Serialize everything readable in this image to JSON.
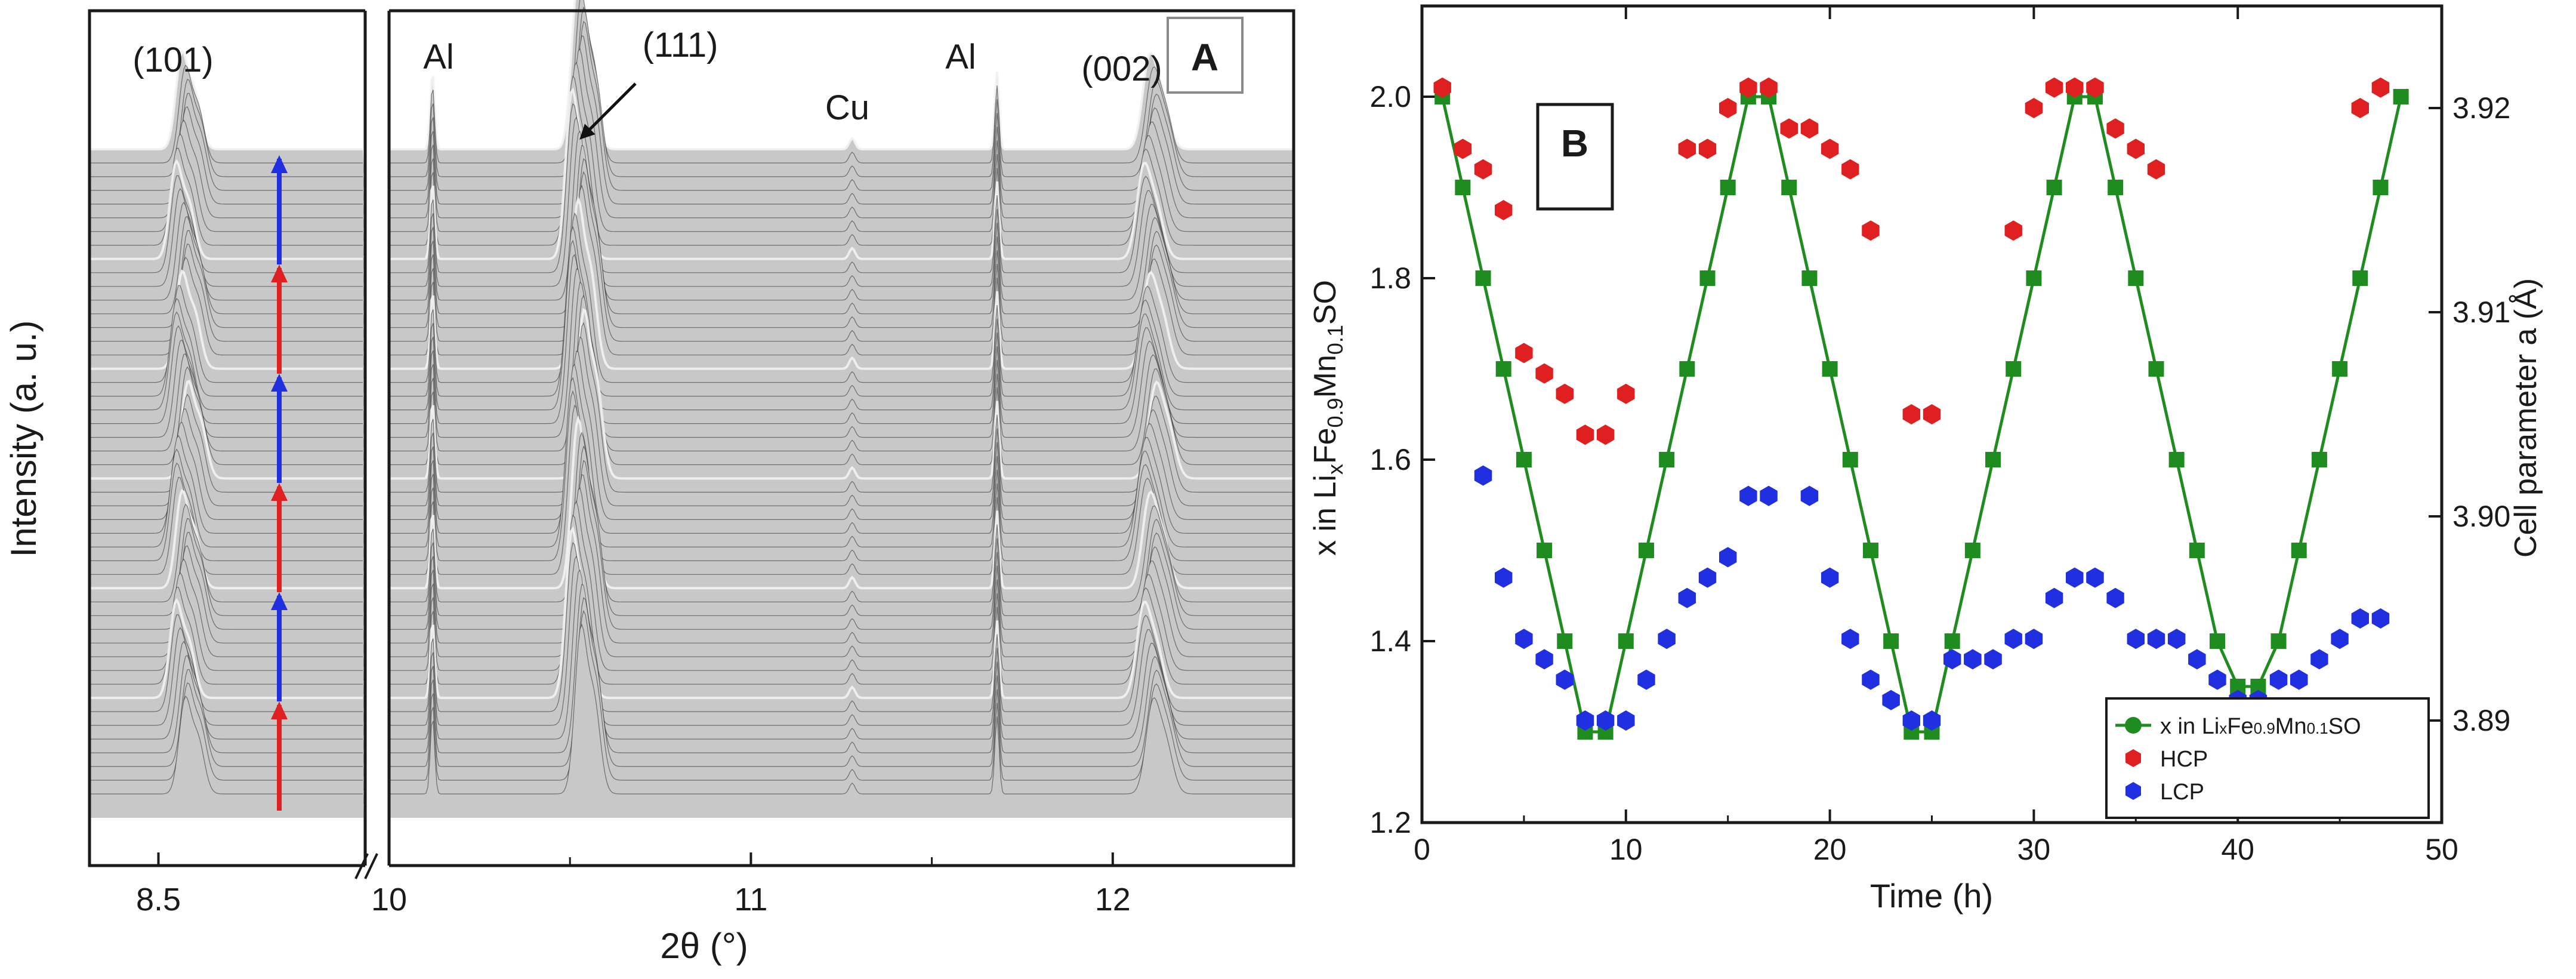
{
  "chart_data": [
    {
      "panel": "A",
      "type": "line",
      "title": "",
      "xlabel": "2θ (°)",
      "ylabel": "Intensity (a. u.)",
      "xlim": [
        8.35,
        12.5
      ],
      "x_break": [
        8.95,
        10.0
      ],
      "xticks": [
        "8.5",
        "10",
        "11",
        "12"
      ],
      "xtick_values": [
        8.5,
        10,
        11,
        12
      ],
      "peaks": [
        {
          "label": "(101)",
          "position": 8.55
        },
        {
          "label": "Al",
          "position": 10.12
        },
        {
          "label": "(111)",
          "position": 10.52
        },
        {
          "label": "Cu",
          "position": 11.28
        },
        {
          "label": "Al",
          "position": 11.68
        },
        {
          "label": "(002)",
          "position": 12.1
        }
      ],
      "scan_count": 48,
      "arrow_segments": [
        {
          "direction": "charge",
          "color": "#e02020"
        },
        {
          "direction": "discharge",
          "color": "#2030e0"
        },
        {
          "direction": "charge",
          "color": "#e02020"
        },
        {
          "direction": "discharge",
          "color": "#2030e0"
        },
        {
          "direction": "charge",
          "color": "#e02020"
        },
        {
          "direction": "discharge",
          "color": "#2030e0"
        }
      ]
    },
    {
      "panel": "B",
      "type": "scatter",
      "title": "",
      "xlabel": "Time (h)",
      "ylabel_left": "x in Li",
      "ylabel_left_sub": "x",
      "ylabel_left_mid": "Fe",
      "ylabel_left_sub2": "0.9",
      "ylabel_left_mid2": "Mn",
      "ylabel_left_sub3": "0.1",
      "ylabel_left_end": "SO",
      "ylabel_right": "Cell parameter a (Å)",
      "xlim": [
        0,
        50
      ],
      "ylim_left": [
        1.2,
        2.1
      ],
      "ylim_right": [
        3.885,
        3.925
      ],
      "xticks": [
        "0",
        "10",
        "20",
        "30",
        "40",
        "50"
      ],
      "xtick_values": [
        0,
        10,
        20,
        30,
        40,
        50
      ],
      "yticks_left": [
        "1.2",
        "1.4",
        "1.6",
        "1.8",
        "2.0"
      ],
      "ytick_left_values": [
        1.2,
        1.4,
        1.6,
        1.8,
        2.0
      ],
      "yticks_right": [
        "3.89",
        "3.90",
        "3.91",
        "3.92"
      ],
      "ytick_right_values": [
        3.89,
        3.9,
        3.91,
        3.92
      ],
      "legend_position": "bottom-right",
      "series": [
        {
          "name": "x in LixFe0.9Mn0.1SO",
          "label_main": "x in Li",
          "label_sub": "x",
          "label_mid": "Fe",
          "label_sub2": "0.9",
          "label_mid2": "Mn",
          "label_sub3": "0.1",
          "label_end": "SO",
          "axis": "left",
          "color": "#1e8c1e",
          "marker": "square-line",
          "points": [
            [
              1,
              2.0
            ],
            [
              2,
              1.9
            ],
            [
              3,
              1.8
            ],
            [
              4,
              1.7
            ],
            [
              5,
              1.6
            ],
            [
              6,
              1.5
            ],
            [
              7,
              1.4
            ],
            [
              8,
              1.3
            ],
            [
              9,
              1.3
            ],
            [
              10,
              1.4
            ],
            [
              11,
              1.5
            ],
            [
              12,
              1.6
            ],
            [
              13,
              1.7
            ],
            [
              14,
              1.8
            ],
            [
              15,
              1.9
            ],
            [
              16,
              2.0
            ],
            [
              17,
              2.0
            ],
            [
              18,
              1.9
            ],
            [
              19,
              1.8
            ],
            [
              20,
              1.7
            ],
            [
              21,
              1.6
            ],
            [
              22,
              1.5
            ],
            [
              23,
              1.4
            ],
            [
              24,
              1.3
            ],
            [
              25,
              1.3
            ],
            [
              26,
              1.4
            ],
            [
              27,
              1.5
            ],
            [
              28,
              1.6
            ],
            [
              29,
              1.7
            ],
            [
              30,
              1.8
            ],
            [
              31,
              1.9
            ],
            [
              32,
              2.0
            ],
            [
              33,
              2.0
            ],
            [
              34,
              1.9
            ],
            [
              35,
              1.8
            ],
            [
              36,
              1.7
            ],
            [
              37,
              1.6
            ],
            [
              38,
              1.5
            ],
            [
              39,
              1.4
            ],
            [
              40,
              1.35
            ],
            [
              41,
              1.35
            ],
            [
              42,
              1.4
            ],
            [
              43,
              1.5
            ],
            [
              44,
              1.6
            ],
            [
              45,
              1.7
            ],
            [
              46,
              1.8
            ],
            [
              47,
              1.9
            ],
            [
              48,
              2.0
            ]
          ]
        },
        {
          "name": "HCP",
          "label_main": "HCP",
          "axis": "right",
          "color": "#e02020",
          "marker": "hexagon",
          "points": [
            [
              1,
              3.921
            ],
            [
              2,
              3.918
            ],
            [
              3,
              3.917
            ],
            [
              4,
              3.915
            ],
            [
              5,
              3.908
            ],
            [
              6,
              3.907
            ],
            [
              7,
              3.906
            ],
            [
              8,
              3.904
            ],
            [
              9,
              3.904
            ],
            [
              10,
              3.906
            ],
            [
              13,
              3.918
            ],
            [
              14,
              3.918
            ],
            [
              15,
              3.92
            ],
            [
              16,
              3.921
            ],
            [
              17,
              3.921
            ],
            [
              18,
              3.919
            ],
            [
              19,
              3.919
            ],
            [
              20,
              3.918
            ],
            [
              21,
              3.917
            ],
            [
              22,
              3.914
            ],
            [
              24,
              3.905
            ],
            [
              25,
              3.905
            ],
            [
              29,
              3.914
            ],
            [
              30,
              3.92
            ],
            [
              31,
              3.921
            ],
            [
              32,
              3.921
            ],
            [
              33,
              3.921
            ],
            [
              34,
              3.919
            ],
            [
              35,
              3.918
            ],
            [
              36,
              3.917
            ],
            [
              46,
              3.92
            ],
            [
              47,
              3.921
            ]
          ]
        },
        {
          "name": "LCP",
          "label_main": "LCP",
          "axis": "right",
          "color": "#2030e0",
          "marker": "hexagon",
          "points": [
            [
              3,
              3.902
            ],
            [
              4,
              3.897
            ],
            [
              5,
              3.894
            ],
            [
              6,
              3.893
            ],
            [
              7,
              3.892
            ],
            [
              8,
              3.89
            ],
            [
              9,
              3.89
            ],
            [
              10,
              3.89
            ],
            [
              11,
              3.892
            ],
            [
              12,
              3.894
            ],
            [
              13,
              3.896
            ],
            [
              14,
              3.897
            ],
            [
              15,
              3.898
            ],
            [
              16,
              3.901
            ],
            [
              17,
              3.901
            ],
            [
              19,
              3.901
            ],
            [
              20,
              3.897
            ],
            [
              21,
              3.894
            ],
            [
              22,
              3.892
            ],
            [
              23,
              3.891
            ],
            [
              24,
              3.89
            ],
            [
              25,
              3.89
            ],
            [
              26,
              3.893
            ],
            [
              27,
              3.893
            ],
            [
              28,
              3.893
            ],
            [
              29,
              3.894
            ],
            [
              30,
              3.894
            ],
            [
              31,
              3.896
            ],
            [
              32,
              3.897
            ],
            [
              33,
              3.897
            ],
            [
              34,
              3.896
            ],
            [
              35,
              3.894
            ],
            [
              36,
              3.894
            ],
            [
              37,
              3.894
            ],
            [
              38,
              3.893
            ],
            [
              39,
              3.892
            ],
            [
              40,
              3.891
            ],
            [
              41,
              3.891
            ],
            [
              42,
              3.892
            ],
            [
              43,
              3.892
            ],
            [
              44,
              3.893
            ],
            [
              45,
              3.894
            ],
            [
              46,
              3.895
            ],
            [
              47,
              3.895
            ]
          ]
        }
      ]
    }
  ],
  "panel_labels": {
    "a": "A",
    "b": "B"
  },
  "colors": {
    "frame": "#1a1a1a",
    "waterfall_fill": "#c8c8c8",
    "waterfall_line": "#202020"
  }
}
